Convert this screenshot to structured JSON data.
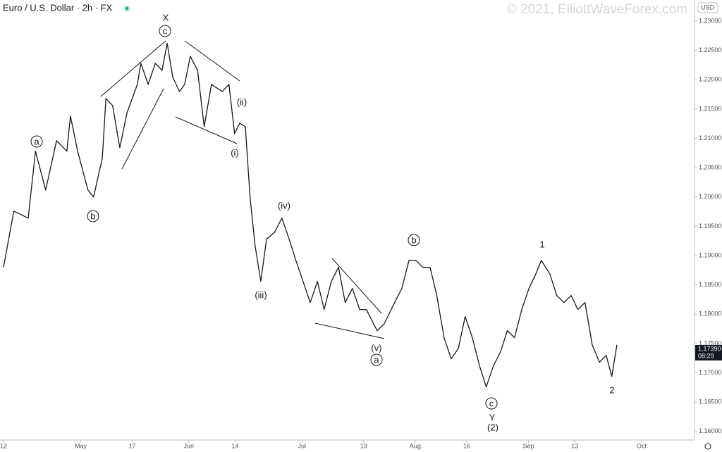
{
  "header": {
    "title": "Euro / U.S. Dollar · 2h · FX",
    "watermark": "© 2021, ElliottWaveForex.com",
    "currency": "USD",
    "price_tag": "1.17390",
    "countdown": "08:29"
  },
  "chart_data": {
    "type": "line",
    "color": "#131722",
    "x": [
      0,
      2,
      4.8,
      6.2,
      8.2,
      10.3,
      12.3,
      13,
      14.4,
      16.4,
      17.5,
      19.2,
      19.9,
      21.2,
      22.6,
      24,
      26,
      26.7,
      28.1,
      29.5,
      30.8,
      31.8,
      32.9,
      34.2,
      35.2,
      36.3,
      37.7,
      39,
      40.4,
      42.5,
      43.8,
      44.9,
      45.9,
      47,
      47.9,
      48.9,
      50,
      51.1,
      52.7,
      54.1,
      55.5,
      56.8,
      58.2,
      59.6,
      61,
      62.3,
      63.7,
      65.1,
      66.4,
      67.8,
      69.2,
      70.5,
      72.6,
      74,
      76,
      77.4,
      78.8,
      80.1,
      81.5,
      82.9,
      84.2,
      85.6,
      87,
      88.4,
      89.7,
      91.1,
      92.5,
      93.8,
      95.2,
      96.6,
      97.9,
      99.3,
      100.7,
      102.1,
      103.4,
      104.5,
      106.2,
      107.5,
      108.9,
      110.3,
      111.6,
      113,
      114.4,
      115.8,
      117.1,
      118.2,
      119.2
    ],
    "values": [
      1.188,
      1.1976,
      1.1964,
      1.2078,
      1.2012,
      1.2096,
      1.2078,
      1.2138,
      1.2078,
      1.2012,
      1.2,
      1.2066,
      1.2168,
      1.2156,
      1.2084,
      1.2144,
      1.2192,
      1.2228,
      1.2192,
      1.2228,
      1.2216,
      1.2262,
      1.2204,
      1.218,
      1.2192,
      1.224,
      1.2216,
      1.212,
      1.2192,
      1.218,
      1.2192,
      1.2108,
      1.2126,
      1.212,
      1.2,
      1.1916,
      1.1856,
      1.1928,
      1.194,
      1.1964,
      1.1928,
      1.1892,
      1.1856,
      1.182,
      1.1856,
      1.1808,
      1.1856,
      1.188,
      1.182,
      1.1844,
      1.1808,
      1.1808,
      1.1772,
      1.1784,
      1.182,
      1.1844,
      1.1892,
      1.1892,
      1.188,
      1.188,
      1.1832,
      1.176,
      1.1724,
      1.1742,
      1.1796,
      1.176,
      1.1712,
      1.1676,
      1.1712,
      1.1736,
      1.1772,
      1.176,
      1.1808,
      1.1844,
      1.1868,
      1.1892,
      1.1868,
      1.1832,
      1.182,
      1.1832,
      1.1808,
      1.182,
      1.1748,
      1.1718,
      1.173,
      1.1694,
      1.1748
    ],
    "xlim": [
      0,
      134
    ],
    "ylim": [
      1.1589,
      1.2336
    ],
    "xticks": [
      {
        "value": 0,
        "label": "12"
      },
      {
        "value": 15,
        "label": "May"
      },
      {
        "value": 25,
        "label": "17"
      },
      {
        "value": 36,
        "label": "Jun"
      },
      {
        "value": 45,
        "label": "14"
      },
      {
        "value": 58,
        "label": "Jul"
      },
      {
        "value": 70,
        "label": "19"
      },
      {
        "value": 80,
        "label": "Aug"
      },
      {
        "value": 90,
        "label": "16"
      },
      {
        "value": 102,
        "label": "Sep"
      },
      {
        "value": 111,
        "label": "13"
      },
      {
        "value": 124,
        "label": "Oct"
      }
    ],
    "yticks": [
      {
        "value": 1.16,
        "label": "1.16000"
      },
      {
        "value": 1.165,
        "label": "1.16500"
      },
      {
        "value": 1.17,
        "label": "1.17000"
      },
      {
        "value": 1.175,
        "label": "1.17500"
      },
      {
        "value": 1.18,
        "label": "1.18000"
      },
      {
        "value": 1.185,
        "label": "1.18500"
      },
      {
        "value": 1.19,
        "label": "1.19000"
      },
      {
        "value": 1.195,
        "label": "1.19500"
      },
      {
        "value": 1.2,
        "label": "1.20000"
      },
      {
        "value": 1.205,
        "label": "1.20500"
      },
      {
        "value": 1.21,
        "label": "1.21000"
      },
      {
        "value": 1.215,
        "label": "1.21500"
      },
      {
        "value": 1.22,
        "label": "1.22000"
      },
      {
        "value": 1.225,
        "label": "1.22500"
      },
      {
        "value": 1.23,
        "label": "1.23000"
      }
    ],
    "annotations": [
      "X",
      "c",
      "a",
      "b",
      "(ii)",
      "(i)",
      "(iv)",
      "(iii)",
      "b",
      "(v)",
      "a",
      "1",
      "2",
      "c",
      "Y",
      "(2)"
    ]
  }
}
